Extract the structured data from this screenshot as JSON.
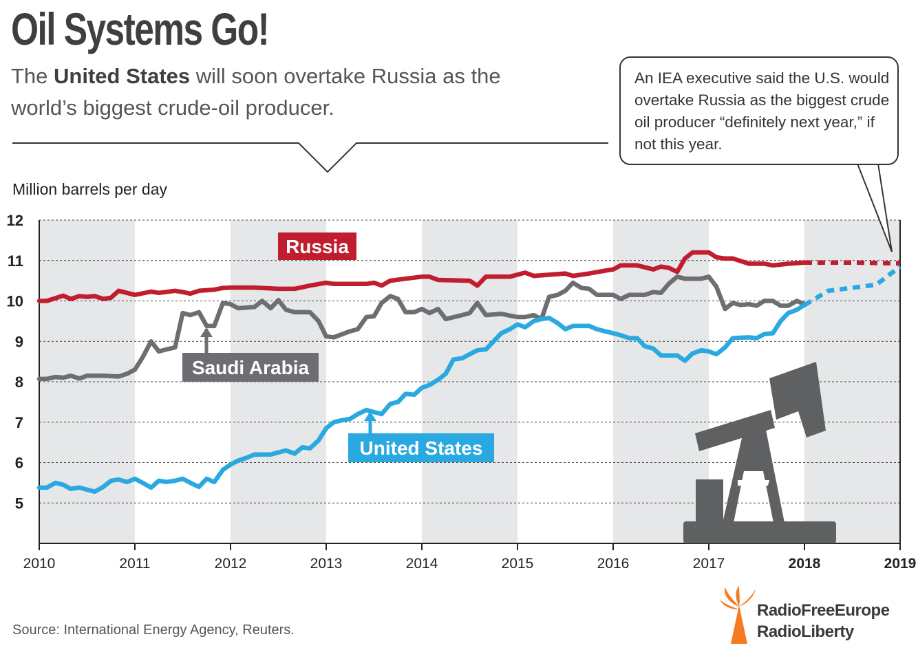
{
  "header": {
    "title": "Oil Systems Go!",
    "subtitle_pre": "The ",
    "subtitle_bold": "United States",
    "subtitle_post": " will soon overtake Russia as the world’s biggest crude-oil producer."
  },
  "callout": {
    "text": "An IEA executive said the U.S. would overtake Russia as the biggest crude oil producer “definitely next year,” if not this year."
  },
  "footer": {
    "source": "Source: International Energy Agency, Reuters.",
    "brand_line1": "RadioFreeEurope",
    "brand_line2": "RadioLiberty"
  },
  "colors": {
    "russia": "#c01d2e",
    "saudi": "#6d6e71",
    "us": "#29a9e0",
    "band": "#e6e7e8",
    "brand_orange": "#f47b20"
  },
  "chart_data": {
    "type": "line",
    "ylabel": "Million barrels per day",
    "ylim": [
      4,
      12
    ],
    "yticks": [
      5,
      6,
      7,
      8,
      9,
      10,
      11,
      12
    ],
    "xlim": [
      2010,
      2019
    ],
    "xticks": [
      {
        "label": "2010",
        "value": 2010,
        "bold": false
      },
      {
        "label": "2011",
        "value": 2011,
        "bold": false
      },
      {
        "label": "2012",
        "value": 2012,
        "bold": false
      },
      {
        "label": "2013",
        "value": 2013,
        "bold": false
      },
      {
        "label": "2014",
        "value": 2014,
        "bold": false
      },
      {
        "label": "2015",
        "value": 2015,
        "bold": false
      },
      {
        "label": "2016",
        "value": 2016,
        "bold": false
      },
      {
        "label": "2017",
        "value": 2017,
        "bold": false
      },
      {
        "label": "2018",
        "value": 2018,
        "bold": true
      },
      {
        "label": "2019",
        "value": 2019,
        "bold": true
      }
    ],
    "grid": true,
    "series": [
      {
        "name": "Russia",
        "color": "#c01d2e",
        "values": [
          [
            2010,
            10.0
          ],
          [
            2010.08,
            10.0
          ],
          [
            2010.25,
            10.13
          ],
          [
            2010.33,
            10.05
          ],
          [
            2010.42,
            10.12
          ],
          [
            2010.5,
            10.1
          ],
          [
            2010.58,
            10.12
          ],
          [
            2010.67,
            10.05
          ],
          [
            2010.75,
            10.08
          ],
          [
            2010.83,
            10.25
          ],
          [
            2011.0,
            10.15
          ],
          [
            2011.17,
            10.23
          ],
          [
            2011.25,
            10.2
          ],
          [
            2011.42,
            10.25
          ],
          [
            2011.5,
            10.22
          ],
          [
            2011.58,
            10.18
          ],
          [
            2011.67,
            10.25
          ],
          [
            2011.83,
            10.28
          ],
          [
            2011.92,
            10.32
          ],
          [
            2012.0,
            10.33
          ],
          [
            2012.25,
            10.33
          ],
          [
            2012.5,
            10.3
          ],
          [
            2012.67,
            10.3
          ],
          [
            2012.83,
            10.38
          ],
          [
            2013.0,
            10.45
          ],
          [
            2013.08,
            10.42
          ],
          [
            2013.42,
            10.42
          ],
          [
            2013.5,
            10.45
          ],
          [
            2013.58,
            10.38
          ],
          [
            2013.67,
            10.5
          ],
          [
            2013.83,
            10.55
          ],
          [
            2014.0,
            10.6
          ],
          [
            2014.08,
            10.6
          ],
          [
            2014.17,
            10.52
          ],
          [
            2014.5,
            10.5
          ],
          [
            2014.58,
            10.38
          ],
          [
            2014.67,
            10.6
          ],
          [
            2014.92,
            10.6
          ],
          [
            2015.08,
            10.7
          ],
          [
            2015.17,
            10.62
          ],
          [
            2015.5,
            10.68
          ],
          [
            2015.58,
            10.62
          ],
          [
            2015.75,
            10.68
          ],
          [
            2015.92,
            10.75
          ],
          [
            2016.0,
            10.78
          ],
          [
            2016.08,
            10.88
          ],
          [
            2016.25,
            10.88
          ],
          [
            2016.42,
            10.78
          ],
          [
            2016.5,
            10.85
          ],
          [
            2016.58,
            10.82
          ],
          [
            2016.67,
            10.72
          ],
          [
            2016.75,
            11.05
          ],
          [
            2016.83,
            11.2
          ],
          [
            2017.0,
            11.2
          ],
          [
            2017.08,
            11.08
          ],
          [
            2017.17,
            11.05
          ],
          [
            2017.25,
            11.05
          ],
          [
            2017.42,
            10.92
          ],
          [
            2017.58,
            10.92
          ],
          [
            2017.67,
            10.88
          ],
          [
            2017.75,
            10.9
          ],
          [
            2017.83,
            10.92
          ],
          [
            2018.0,
            10.95
          ]
        ],
        "projection": [
          [
            2018.0,
            10.95
          ],
          [
            2018.5,
            10.95
          ],
          [
            2019.0,
            10.93
          ]
        ]
      },
      {
        "name": "Saudi Arabia",
        "color": "#6d6e71",
        "values": [
          [
            2010,
            8.07
          ],
          [
            2010.08,
            8.07
          ],
          [
            2010.17,
            8.12
          ],
          [
            2010.25,
            8.1
          ],
          [
            2010.33,
            8.15
          ],
          [
            2010.42,
            8.08
          ],
          [
            2010.5,
            8.15
          ],
          [
            2010.67,
            8.15
          ],
          [
            2010.83,
            8.13
          ],
          [
            2010.92,
            8.2
          ],
          [
            2011.0,
            8.3
          ],
          [
            2011.08,
            8.6
          ],
          [
            2011.17,
            9.0
          ],
          [
            2011.25,
            8.75
          ],
          [
            2011.33,
            8.8
          ],
          [
            2011.42,
            8.85
          ],
          [
            2011.5,
            9.7
          ],
          [
            2011.58,
            9.65
          ],
          [
            2011.67,
            9.72
          ],
          [
            2011.75,
            9.38
          ],
          [
            2011.83,
            9.38
          ],
          [
            2011.92,
            9.95
          ],
          [
            2012.0,
            9.92
          ],
          [
            2012.08,
            9.82
          ],
          [
            2012.25,
            9.85
          ],
          [
            2012.33,
            10.0
          ],
          [
            2012.42,
            9.82
          ],
          [
            2012.5,
            10.02
          ],
          [
            2012.58,
            9.78
          ],
          [
            2012.67,
            9.72
          ],
          [
            2012.83,
            9.72
          ],
          [
            2012.92,
            9.5
          ],
          [
            2013.0,
            9.12
          ],
          [
            2013.08,
            9.1
          ],
          [
            2013.17,
            9.18
          ],
          [
            2013.25,
            9.25
          ],
          [
            2013.33,
            9.3
          ],
          [
            2013.42,
            9.6
          ],
          [
            2013.5,
            9.62
          ],
          [
            2013.58,
            9.95
          ],
          [
            2013.67,
            10.12
          ],
          [
            2013.75,
            10.05
          ],
          [
            2013.83,
            9.72
          ],
          [
            2013.92,
            9.72
          ],
          [
            2014.0,
            9.8
          ],
          [
            2014.08,
            9.7
          ],
          [
            2014.17,
            9.8
          ],
          [
            2014.25,
            9.55
          ],
          [
            2014.42,
            9.65
          ],
          [
            2014.5,
            9.7
          ],
          [
            2014.58,
            9.95
          ],
          [
            2014.67,
            9.65
          ],
          [
            2014.83,
            9.68
          ],
          [
            2015.0,
            9.6
          ],
          [
            2015.08,
            9.6
          ],
          [
            2015.17,
            9.65
          ],
          [
            2015.25,
            9.55
          ],
          [
            2015.33,
            10.1
          ],
          [
            2015.42,
            10.15
          ],
          [
            2015.5,
            10.25
          ],
          [
            2015.58,
            10.45
          ],
          [
            2015.67,
            10.32
          ],
          [
            2015.75,
            10.3
          ],
          [
            2015.83,
            10.15
          ],
          [
            2016.0,
            10.15
          ],
          [
            2016.08,
            10.05
          ],
          [
            2016.17,
            10.15
          ],
          [
            2016.33,
            10.15
          ],
          [
            2016.42,
            10.22
          ],
          [
            2016.5,
            10.2
          ],
          [
            2016.58,
            10.42
          ],
          [
            2016.67,
            10.6
          ],
          [
            2016.75,
            10.55
          ],
          [
            2016.92,
            10.55
          ],
          [
            2017.0,
            10.6
          ],
          [
            2017.08,
            10.35
          ],
          [
            2017.17,
            9.8
          ],
          [
            2017.25,
            9.95
          ],
          [
            2017.33,
            9.9
          ],
          [
            2017.42,
            9.92
          ],
          [
            2017.5,
            9.88
          ],
          [
            2017.58,
            10.0
          ],
          [
            2017.67,
            10.0
          ],
          [
            2017.75,
            9.88
          ],
          [
            2017.83,
            9.88
          ],
          [
            2017.92,
            10.0
          ],
          [
            2018.0,
            9.92
          ]
        ],
        "projection": []
      },
      {
        "name": "United States",
        "color": "#29a9e0",
        "values": [
          [
            2010,
            5.38
          ],
          [
            2010.08,
            5.38
          ],
          [
            2010.17,
            5.5
          ],
          [
            2010.25,
            5.45
          ],
          [
            2010.33,
            5.35
          ],
          [
            2010.42,
            5.38
          ],
          [
            2010.5,
            5.33
          ],
          [
            2010.58,
            5.28
          ],
          [
            2010.67,
            5.4
          ],
          [
            2010.75,
            5.55
          ],
          [
            2010.83,
            5.58
          ],
          [
            2010.92,
            5.52
          ],
          [
            2011.0,
            5.6
          ],
          [
            2011.08,
            5.5
          ],
          [
            2011.17,
            5.38
          ],
          [
            2011.25,
            5.55
          ],
          [
            2011.33,
            5.52
          ],
          [
            2011.42,
            5.55
          ],
          [
            2011.5,
            5.6
          ],
          [
            2011.58,
            5.5
          ],
          [
            2011.67,
            5.4
          ],
          [
            2011.75,
            5.6
          ],
          [
            2011.83,
            5.52
          ],
          [
            2011.92,
            5.82
          ],
          [
            2012.0,
            5.95
          ],
          [
            2012.08,
            6.05
          ],
          [
            2012.17,
            6.12
          ],
          [
            2012.25,
            6.2
          ],
          [
            2012.42,
            6.2
          ],
          [
            2012.5,
            6.25
          ],
          [
            2012.58,
            6.3
          ],
          [
            2012.67,
            6.22
          ],
          [
            2012.75,
            6.38
          ],
          [
            2012.83,
            6.35
          ],
          [
            2012.92,
            6.55
          ],
          [
            2013.0,
            6.85
          ],
          [
            2013.08,
            7.0
          ],
          [
            2013.17,
            7.05
          ],
          [
            2013.25,
            7.08
          ],
          [
            2013.33,
            7.2
          ],
          [
            2013.42,
            7.3
          ],
          [
            2013.5,
            7.25
          ],
          [
            2013.58,
            7.2
          ],
          [
            2013.67,
            7.45
          ],
          [
            2013.75,
            7.5
          ],
          [
            2013.83,
            7.7
          ],
          [
            2013.92,
            7.68
          ],
          [
            2014.0,
            7.85
          ],
          [
            2014.08,
            7.92
          ],
          [
            2014.17,
            8.05
          ],
          [
            2014.25,
            8.2
          ],
          [
            2014.33,
            8.55
          ],
          [
            2014.42,
            8.58
          ],
          [
            2014.5,
            8.68
          ],
          [
            2014.58,
            8.78
          ],
          [
            2014.67,
            8.8
          ],
          [
            2014.75,
            9.0
          ],
          [
            2014.83,
            9.2
          ],
          [
            2014.92,
            9.3
          ],
          [
            2015.0,
            9.42
          ],
          [
            2015.08,
            9.35
          ],
          [
            2015.17,
            9.5
          ],
          [
            2015.25,
            9.55
          ],
          [
            2015.33,
            9.58
          ],
          [
            2015.42,
            9.45
          ],
          [
            2015.5,
            9.3
          ],
          [
            2015.58,
            9.38
          ],
          [
            2015.75,
            9.38
          ],
          [
            2015.83,
            9.3
          ],
          [
            2016.0,
            9.2
          ],
          [
            2016.08,
            9.15
          ],
          [
            2016.17,
            9.08
          ],
          [
            2016.25,
            9.08
          ],
          [
            2016.33,
            8.88
          ],
          [
            2016.42,
            8.82
          ],
          [
            2016.5,
            8.65
          ],
          [
            2016.67,
            8.65
          ],
          [
            2016.75,
            8.52
          ],
          [
            2016.83,
            8.7
          ],
          [
            2016.92,
            8.78
          ],
          [
            2017.0,
            8.75
          ],
          [
            2017.08,
            8.68
          ],
          [
            2017.17,
            8.85
          ],
          [
            2017.25,
            9.08
          ],
          [
            2017.42,
            9.1
          ],
          [
            2017.5,
            9.08
          ],
          [
            2017.58,
            9.18
          ],
          [
            2017.67,
            9.2
          ],
          [
            2017.75,
            9.5
          ],
          [
            2017.83,
            9.7
          ],
          [
            2017.92,
            9.78
          ],
          [
            2018.0,
            9.9
          ]
        ],
        "projection": [
          [
            2018.0,
            9.9
          ],
          [
            2018.25,
            10.25
          ],
          [
            2018.75,
            10.4
          ],
          [
            2019.0,
            10.85
          ]
        ]
      }
    ],
    "labels": [
      {
        "series": "Russia",
        "text": "Russia"
      },
      {
        "series": "Saudi Arabia",
        "text": "Saudi Arabia"
      },
      {
        "series": "United States",
        "text": "United States"
      }
    ]
  }
}
